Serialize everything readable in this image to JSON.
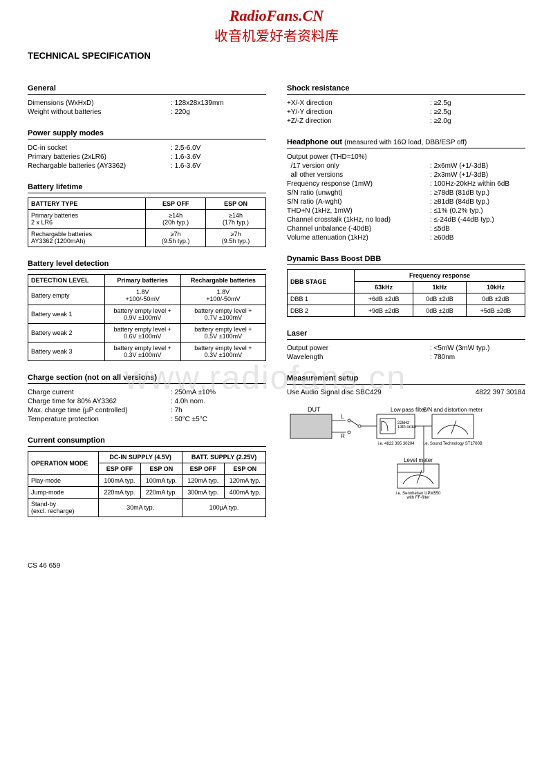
{
  "header": {
    "logo_line1": "RadioFans.CN",
    "logo_line2": "收音机爱好者资料库"
  },
  "main_title": "TECHNICAL SPECIFICATION",
  "watermark": "www.radiofans.cn",
  "footer": "CS 46 659",
  "left": {
    "general": {
      "title": "General",
      "rows": [
        {
          "label": "Dimensions (WxHxD)",
          "value": "128x28x139mm"
        },
        {
          "label": "Weight without batteries",
          "value": "220g"
        }
      ]
    },
    "power_supply": {
      "title": "Power supply modes",
      "rows": [
        {
          "label": "DC-in socket",
          "value": "2.5-6.0V"
        },
        {
          "label": "Primary batteries (2xLR6)",
          "value": "1.6-3.6V"
        },
        {
          "label": "Rechargable batteries (AY3362)",
          "value": "1.6-3.6V"
        }
      ]
    },
    "battery_lifetime": {
      "title": "Battery lifetime",
      "headers": [
        "BATTERY TYPE",
        "ESP OFF",
        "ESP ON"
      ],
      "rows": [
        [
          "Primary batteries\n2 x LR6",
          "≥14h\n(20h typ.)",
          "≥14h\n(17h typ.)"
        ],
        [
          "Rechargable batteries\nAY3362 (1200mAh)",
          "≥7h\n(9.5h typ.)",
          "≥7h\n(9.5h typ.)"
        ]
      ]
    },
    "battery_detection": {
      "title": "Battery level detection",
      "headers": [
        "DETECTION LEVEL",
        "Primary batteries",
        "Rechargable batteries"
      ],
      "rows": [
        [
          "Battery empty",
          "1.8V\n+100/-50mV",
          "1.8V\n+100/-50mV"
        ],
        [
          "Battery weak 1",
          "battery empty level +\n0.9V ±100mV",
          "battery empty level +\n0.7V ±100mV"
        ],
        [
          "Battery weak 2",
          "battery empty level +\n0.6V ±100mV",
          "battery empty level +\n0.5V ±100mV"
        ],
        [
          "Battery weak 3",
          "battery empty level +\n0.3V ±100mV",
          "battery empty level +\n0.3V ±100mV"
        ]
      ]
    },
    "charge_section": {
      "title": "Charge section (not on all versions)",
      "rows": [
        {
          "label": "Charge current",
          "value": "250mA ±10%"
        },
        {
          "label": "Charge time for 80% AY3362",
          "value": "4.0h nom."
        },
        {
          "label": "Max. charge time (µP controlled)",
          "value": "7h"
        },
        {
          "label": "Temperature protection",
          "value": "50°C ±5°C"
        }
      ]
    },
    "current_consumption": {
      "title": "Current consumption",
      "top_headers": [
        "OPERATION MODE",
        "DC-IN SUPPLY (4.5V)",
        "BATT. SUPPLY (2.25V)"
      ],
      "sub_headers": [
        "ESP OFF",
        "ESP ON",
        "ESP OFF",
        "ESP ON"
      ],
      "rows": [
        [
          "Play-mode",
          "100mA typ.",
          "100mA typ.",
          "120mA typ.",
          "120mA typ."
        ],
        [
          "Jump-mode",
          "220mA typ.",
          "220mA typ.",
          "300mA typ.",
          "400mA typ."
        ]
      ],
      "standby_row": {
        "label": "Stand-by\n(excl. recharge)",
        "dc": "30mA typ.",
        "batt": "100µA typ."
      }
    }
  },
  "right": {
    "shock": {
      "title": "Shock resistance",
      "rows": [
        {
          "label": "+X/-X direction",
          "value": "≥2.5g"
        },
        {
          "label": "+Y/-Y direction",
          "value": "≥2.5g"
        },
        {
          "label": "+Z/-Z direction",
          "value": "≥2.0g"
        }
      ]
    },
    "headphone": {
      "title": "Headphone out",
      "note": "(measured with 16Ω load, DBB/ESP off)",
      "rows": [
        {
          "label": "Output power (THD=10%)",
          "value": ""
        },
        {
          "label": "  /17 version only",
          "value": "2x6mW (+1/-3dB)"
        },
        {
          "label": "  all other versions",
          "value": "2x3mW (+1/-3dB)"
        },
        {
          "label": "Frequency response (1mW)",
          "value": "100Hz-20kHz within 6dB"
        },
        {
          "label": "S/N ratio (unwght)",
          "value": "≥78dB (81dB typ.)"
        },
        {
          "label": "S/N ratio (A-wght)",
          "value": "≥81dB (84dB typ.)"
        },
        {
          "label": "THD+N (1kHz, 1mW)",
          "value": "≤1% (0.2% typ.)"
        },
        {
          "label": "Channel crosstalk (1kHz, no load)",
          "value": "≤-24dB (-44dB typ.)"
        },
        {
          "label": "Channel unbalance (-40dB)",
          "value": "≤5dB"
        },
        {
          "label": "Volume attenuation (1kHz)",
          "value": "≥60dB"
        }
      ]
    },
    "dbb": {
      "title": "Dynamic Bass Boost DBB",
      "top_header": "Frequency response",
      "headers": [
        "DBB STAGE",
        "63kHz",
        "1kHz",
        "10kHz"
      ],
      "rows": [
        [
          "DBB 1",
          "+6dB ±2dB",
          "0dB ±2dB",
          "0dB ±2dB"
        ],
        [
          "DBB 2",
          "+9dB ±2dB",
          "0dB ±2dB",
          "+5dB ±2dB"
        ]
      ]
    },
    "laser": {
      "title": "Laser",
      "rows": [
        {
          "label": "Output power",
          "value": "<5mW (3mW typ.)"
        },
        {
          "label": "Wavelength",
          "value": "780nm"
        }
      ]
    },
    "measurement": {
      "title": "Measurement setup",
      "text_left": "Use Audio Signal disc SBC429",
      "text_right": "4822 397 30184",
      "diagram": {
        "dut": "DUT",
        "l": "L",
        "r": "R",
        "lpf_title": "Low pass filter",
        "lpf_spec": "22kHz\n13th order",
        "lpf_note": "i.e. 4822 395 30204",
        "sn_title": "S/N and distortion meter",
        "sn_note": "i.e. Sound Technology ST1700B",
        "lm_title": "Level meter",
        "lm_note": "i.e. Sennheiser UPM550\nwith FF-filter"
      }
    }
  }
}
